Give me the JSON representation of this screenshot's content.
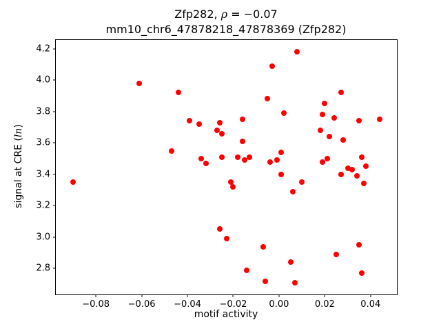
{
  "chart_data": {
    "type": "scatter",
    "title": "Zfp282, ρ = −0.07",
    "title_parts": {
      "prefix": "Zfp282, ",
      "rho": "ρ",
      "suffix": " = −0.07"
    },
    "subtitle": "mm10_chr6_47878218_47878369 (Zfp282)",
    "xlabel": "motif activity",
    "ylabel": "signal at CRE (ln)",
    "ylabel_parts": {
      "prefix": "signal at CRE (",
      "italic": "ln",
      "suffix": ")"
    },
    "xlim": [
      -0.0975,
      0.0515
    ],
    "ylim": [
      2.635,
      4.255
    ],
    "grid": false,
    "legend": "none",
    "marker_color": "#ff0000",
    "marker_size_px": 8,
    "x_ticks": [
      {
        "v": -0.08,
        "label": "−0.08"
      },
      {
        "v": -0.06,
        "label": "−0.06"
      },
      {
        "v": -0.04,
        "label": "−0.04"
      },
      {
        "v": -0.02,
        "label": "−0.02"
      },
      {
        "v": 0.0,
        "label": "0.00"
      },
      {
        "v": 0.02,
        "label": "0.02"
      },
      {
        "v": 0.04,
        "label": "0.04"
      }
    ],
    "y_ticks": [
      {
        "v": 2.8,
        "label": "2.8"
      },
      {
        "v": 3.0,
        "label": "3.0"
      },
      {
        "v": 3.2,
        "label": "3.2"
      },
      {
        "v": 3.4,
        "label": "3.4"
      },
      {
        "v": 3.6,
        "label": "3.6"
      },
      {
        "v": 3.8,
        "label": "3.8"
      },
      {
        "v": 4.0,
        "label": "4.0"
      },
      {
        "v": 4.2,
        "label": "4.2"
      }
    ],
    "points": [
      [
        -0.09,
        3.35
      ],
      [
        -0.061,
        3.98
      ],
      [
        -0.047,
        3.55
      ],
      [
        -0.044,
        3.92
      ],
      [
        -0.039,
        3.74
      ],
      [
        -0.035,
        3.72
      ],
      [
        -0.034,
        3.5
      ],
      [
        -0.032,
        3.47
      ],
      [
        -0.026,
        3.73
      ],
      [
        -0.027,
        3.68
      ],
      [
        -0.025,
        3.66
      ],
      [
        -0.025,
        3.51
      ],
      [
        -0.026,
        3.05
      ],
      [
        -0.023,
        2.99
      ],
      [
        -0.021,
        3.35
      ],
      [
        -0.02,
        3.32
      ],
      [
        -0.018,
        3.51
      ],
      [
        -0.016,
        3.75
      ],
      [
        -0.016,
        3.61
      ],
      [
        -0.015,
        3.49
      ],
      [
        -0.013,
        3.51
      ],
      [
        -0.014,
        2.79
      ],
      [
        -0.007,
        2.94
      ],
      [
        -0.006,
        2.72
      ],
      [
        -0.005,
        3.88
      ],
      [
        -0.004,
        3.48
      ],
      [
        -0.003,
        4.09
      ],
      [
        -0.001,
        3.49
      ],
      [
        0.001,
        3.54
      ],
      [
        0.001,
        3.4
      ],
      [
        0.002,
        3.79
      ],
      [
        0.005,
        2.84
      ],
      [
        0.006,
        3.29
      ],
      [
        0.007,
        2.71
      ],
      [
        0.008,
        4.18
      ],
      [
        0.01,
        3.35
      ],
      [
        0.018,
        3.68
      ],
      [
        0.019,
        3.78
      ],
      [
        0.019,
        3.48
      ],
      [
        0.02,
        3.85
      ],
      [
        0.021,
        3.5
      ],
      [
        0.022,
        3.64
      ],
      [
        0.024,
        3.76
      ],
      [
        0.025,
        2.89
      ],
      [
        0.027,
        3.92
      ],
      [
        0.027,
        3.4
      ],
      [
        0.028,
        3.62
      ],
      [
        0.03,
        3.44
      ],
      [
        0.032,
        3.43
      ],
      [
        0.034,
        3.39
      ],
      [
        0.035,
        2.95
      ],
      [
        0.035,
        3.74
      ],
      [
        0.036,
        3.51
      ],
      [
        0.036,
        2.77
      ],
      [
        0.037,
        3.34
      ],
      [
        0.038,
        3.45
      ],
      [
        0.044,
        3.75
      ]
    ]
  }
}
